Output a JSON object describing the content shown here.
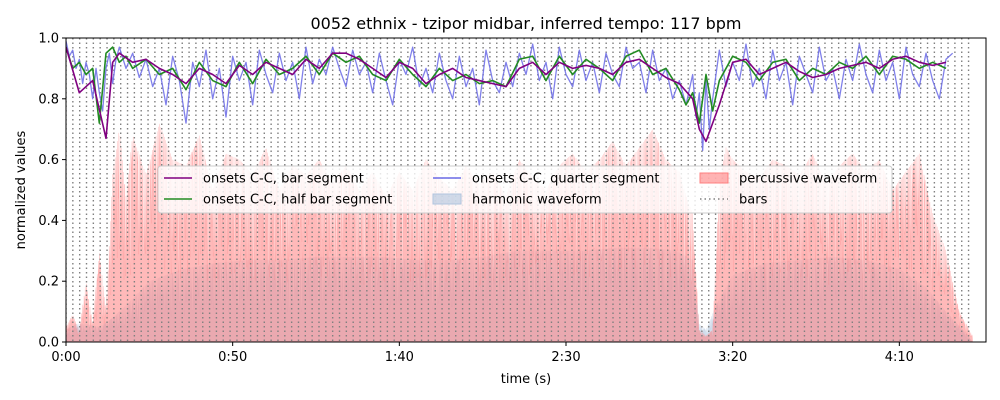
{
  "chart_data": {
    "type": "line",
    "title": "0052 ethnix - tzipor midbar, inferred tempo: 117 bpm",
    "xlabel": "time (s)",
    "ylabel": "normalized values",
    "xlim": [
      0,
      276
    ],
    "ylim": [
      0.0,
      1.0
    ],
    "x_ticks": [
      {
        "value": 0,
        "label": "0:00"
      },
      {
        "value": 50,
        "label": "0:50"
      },
      {
        "value": 100,
        "label": "1:40"
      },
      {
        "value": 150,
        "label": "2:30"
      },
      {
        "value": 200,
        "label": "3:20"
      },
      {
        "value": 250,
        "label": "4:10"
      }
    ],
    "y_ticks": [
      {
        "value": 0.0,
        "label": "0.0"
      },
      {
        "value": 0.2,
        "label": "0.2"
      },
      {
        "value": 0.4,
        "label": "0.4"
      },
      {
        "value": 0.6,
        "label": "0.6"
      },
      {
        "value": 0.8,
        "label": "0.8"
      },
      {
        "value": 1.0,
        "label": "1.0"
      }
    ],
    "grid": false,
    "legend_position": "center",
    "bars": {
      "name": "bars",
      "color": "#808080",
      "tempo_bpm": 117,
      "beats_per_bar": 4,
      "start": 0,
      "end": 272
    },
    "series": [
      {
        "name": "onsets C-C, bar segment",
        "type": "line",
        "color": "#800080",
        "x": [
          0,
          4,
          8,
          12,
          14,
          16,
          20,
          24,
          28,
          32,
          36,
          40,
          44,
          48,
          52,
          56,
          60,
          64,
          68,
          72,
          76,
          80,
          84,
          88,
          92,
          96,
          100,
          104,
          108,
          112,
          116,
          120,
          124,
          128,
          132,
          136,
          140,
          144,
          148,
          152,
          156,
          160,
          164,
          168,
          172,
          176,
          180,
          184,
          188,
          190,
          192,
          196,
          200,
          204,
          208,
          212,
          216,
          220,
          224,
          228,
          232,
          236,
          240,
          244,
          248,
          252,
          256,
          260,
          264
        ],
        "values": [
          0.97,
          0.82,
          0.86,
          0.67,
          0.92,
          0.95,
          0.92,
          0.93,
          0.9,
          0.88,
          0.85,
          0.9,
          0.88,
          0.85,
          0.91,
          0.88,
          0.92,
          0.9,
          0.88,
          0.93,
          0.9,
          0.95,
          0.95,
          0.93,
          0.9,
          0.87,
          0.92,
          0.9,
          0.85,
          0.88,
          0.9,
          0.87,
          0.86,
          0.85,
          0.84,
          0.9,
          0.92,
          0.88,
          0.92,
          0.9,
          0.91,
          0.9,
          0.88,
          0.92,
          0.93,
          0.9,
          0.87,
          0.85,
          0.8,
          0.7,
          0.66,
          0.78,
          0.92,
          0.93,
          0.88,
          0.9,
          0.92,
          0.89,
          0.87,
          0.88,
          0.9,
          0.91,
          0.92,
          0.9,
          0.93,
          0.94,
          0.92,
          0.91,
          0.92
        ]
      },
      {
        "name": "onsets C-C, half bar segment",
        "type": "line",
        "color": "#228B22",
        "x": [
          0,
          2,
          4,
          6,
          8,
          10,
          12,
          14,
          16,
          18,
          20,
          24,
          28,
          32,
          36,
          40,
          44,
          48,
          52,
          56,
          60,
          64,
          68,
          72,
          76,
          80,
          84,
          88,
          92,
          96,
          100,
          104,
          108,
          112,
          116,
          120,
          124,
          128,
          132,
          136,
          140,
          144,
          148,
          152,
          156,
          160,
          164,
          168,
          172,
          176,
          180,
          184,
          186,
          188,
          190,
          192,
          194,
          196,
          200,
          204,
          208,
          212,
          216,
          220,
          224,
          228,
          232,
          236,
          240,
          244,
          248,
          252,
          256,
          260,
          264
        ],
        "values": [
          0.97,
          0.9,
          0.92,
          0.88,
          0.9,
          0.72,
          0.95,
          0.97,
          0.92,
          0.94,
          0.9,
          0.93,
          0.88,
          0.9,
          0.83,
          0.92,
          0.86,
          0.84,
          0.92,
          0.85,
          0.93,
          0.88,
          0.9,
          0.94,
          0.88,
          0.95,
          0.92,
          0.94,
          0.88,
          0.86,
          0.93,
          0.88,
          0.84,
          0.9,
          0.86,
          0.88,
          0.85,
          0.86,
          0.84,
          0.93,
          0.94,
          0.86,
          0.94,
          0.88,
          0.93,
          0.9,
          0.86,
          0.94,
          0.96,
          0.88,
          0.9,
          0.83,
          0.78,
          0.82,
          0.72,
          0.88,
          0.76,
          0.86,
          0.94,
          0.92,
          0.86,
          0.92,
          0.93,
          0.86,
          0.9,
          0.88,
          0.92,
          0.9,
          0.94,
          0.88,
          0.94,
          0.93,
          0.9,
          0.92,
          0.9
        ]
      },
      {
        "name": "onsets C-C, quarter segment",
        "type": "line",
        "color": "#6A6AE6",
        "x": [
          0,
          1,
          2,
          3,
          4,
          5,
          6,
          7,
          8,
          9,
          10,
          11,
          12,
          13,
          14,
          15,
          16,
          18,
          20,
          22,
          24,
          26,
          28,
          30,
          32,
          34,
          36,
          38,
          40,
          42,
          44,
          46,
          48,
          50,
          52,
          54,
          56,
          58,
          60,
          62,
          64,
          66,
          68,
          70,
          72,
          74,
          76,
          78,
          80,
          82,
          84,
          86,
          88,
          90,
          92,
          94,
          96,
          98,
          100,
          102,
          104,
          106,
          108,
          110,
          112,
          114,
          116,
          118,
          120,
          122,
          124,
          126,
          128,
          130,
          132,
          134,
          136,
          138,
          140,
          142,
          144,
          146,
          148,
          150,
          152,
          154,
          156,
          158,
          160,
          162,
          164,
          166,
          168,
          170,
          172,
          174,
          176,
          178,
          180,
          182,
          184,
          186,
          188,
          189,
          190,
          191,
          192,
          193,
          194,
          196,
          198,
          200,
          202,
          204,
          206,
          208,
          210,
          212,
          214,
          216,
          218,
          220,
          222,
          224,
          226,
          228,
          230,
          232,
          234,
          236,
          238,
          240,
          242,
          244,
          246,
          248,
          250,
          252,
          254,
          256,
          258,
          260,
          262,
          264,
          266
        ],
        "values": [
          0.99,
          0.94,
          0.96,
          0.9,
          0.93,
          0.85,
          0.92,
          0.88,
          0.8,
          0.9,
          0.82,
          0.76,
          0.9,
          0.95,
          0.85,
          0.93,
          0.97,
          0.9,
          0.95,
          0.87,
          0.93,
          0.84,
          0.9,
          0.78,
          0.94,
          0.86,
          0.72,
          0.92,
          0.84,
          0.96,
          0.8,
          0.9,
          0.74,
          0.94,
          0.86,
          0.92,
          0.78,
          0.96,
          0.88,
          0.82,
          0.95,
          0.86,
          0.92,
          0.8,
          0.97,
          0.85,
          0.93,
          0.88,
          0.97,
          0.9,
          0.84,
          0.96,
          0.88,
          0.92,
          0.82,
          0.95,
          0.86,
          0.78,
          0.93,
          0.88,
          0.97,
          0.84,
          0.9,
          0.82,
          0.95,
          0.86,
          0.8,
          0.94,
          0.84,
          0.9,
          0.78,
          0.96,
          0.86,
          0.82,
          0.92,
          0.84,
          0.95,
          0.88,
          0.98,
          0.86,
          0.92,
          0.8,
          0.97,
          0.88,
          0.84,
          0.96,
          0.86,
          0.92,
          0.82,
          0.95,
          0.88,
          0.84,
          0.97,
          0.9,
          0.92,
          0.82,
          0.96,
          0.86,
          0.9,
          0.8,
          0.86,
          0.78,
          0.88,
          0.74,
          0.82,
          0.63,
          0.86,
          0.7,
          0.8,
          0.96,
          0.84,
          0.92,
          0.86,
          0.98,
          0.84,
          0.9,
          0.8,
          0.96,
          0.86,
          0.92,
          0.78,
          0.94,
          0.88,
          0.82,
          0.97,
          0.86,
          0.9,
          0.8,
          0.93,
          0.86,
          0.98,
          0.88,
          0.82,
          0.96,
          0.86,
          0.92,
          0.8,
          0.97,
          0.88,
          0.84,
          0.95,
          0.86,
          0.8,
          0.93,
          0.95
        ]
      },
      {
        "name": "harmonic waveform",
        "type": "area",
        "color": "#B0C4DE",
        "x": [
          0,
          3,
          6,
          10,
          14,
          18,
          25,
          35,
          45,
          55,
          65,
          75,
          85,
          95,
          105,
          115,
          125,
          135,
          145,
          155,
          165,
          175,
          183,
          188,
          190,
          192,
          195,
          200,
          210,
          220,
          230,
          240,
          250,
          258,
          264,
          270,
          272
        ],
        "values": [
          0.04,
          0.06,
          0.06,
          0.05,
          0.08,
          0.12,
          0.2,
          0.24,
          0.26,
          0.27,
          0.27,
          0.28,
          0.28,
          0.28,
          0.27,
          0.27,
          0.28,
          0.3,
          0.3,
          0.3,
          0.31,
          0.31,
          0.3,
          0.27,
          0.06,
          0.04,
          0.12,
          0.22,
          0.26,
          0.27,
          0.28,
          0.27,
          0.24,
          0.18,
          0.1,
          0.03,
          0.0
        ]
      },
      {
        "name": "percussive waveform",
        "type": "area",
        "color": "#FF8080",
        "x": [
          0,
          2,
          4,
          6,
          8,
          10,
          12,
          14,
          16,
          18,
          20,
          24,
          28,
          32,
          36,
          40,
          44,
          48,
          52,
          56,
          60,
          64,
          68,
          72,
          76,
          80,
          84,
          88,
          92,
          96,
          100,
          104,
          108,
          112,
          116,
          120,
          124,
          128,
          132,
          136,
          140,
          144,
          148,
          152,
          156,
          160,
          164,
          168,
          172,
          176,
          180,
          184,
          186,
          188,
          190,
          192,
          194,
          196,
          198,
          200,
          204,
          208,
          212,
          216,
          220,
          224,
          228,
          232,
          236,
          240,
          244,
          248,
          252,
          256,
          260,
          264,
          268,
          272
        ],
        "values": [
          0.05,
          0.09,
          0.04,
          0.2,
          0.06,
          0.3,
          0.1,
          0.55,
          0.7,
          0.48,
          0.68,
          0.55,
          0.72,
          0.6,
          0.58,
          0.68,
          0.5,
          0.62,
          0.6,
          0.55,
          0.64,
          0.5,
          0.58,
          0.55,
          0.6,
          0.52,
          0.58,
          0.5,
          0.56,
          0.48,
          0.56,
          0.5,
          0.6,
          0.54,
          0.5,
          0.58,
          0.52,
          0.56,
          0.48,
          0.6,
          0.54,
          0.5,
          0.58,
          0.62,
          0.56,
          0.6,
          0.66,
          0.58,
          0.64,
          0.7,
          0.6,
          0.56,
          0.48,
          0.42,
          0.04,
          0.02,
          0.04,
          0.52,
          0.64,
          0.6,
          0.56,
          0.54,
          0.6,
          0.58,
          0.55,
          0.62,
          0.52,
          0.58,
          0.62,
          0.56,
          0.6,
          0.5,
          0.56,
          0.62,
          0.42,
          0.3,
          0.1,
          0.02
        ]
      }
    ],
    "legend": [
      {
        "label": "onsets C-C, bar segment",
        "kind": "line",
        "color": "#800080"
      },
      {
        "label": "onsets C-C, half bar segment",
        "kind": "line",
        "color": "#228B22"
      },
      {
        "label": "onsets C-C, quarter segment",
        "kind": "line",
        "color": "#6A6AE6"
      },
      {
        "label": "harmonic waveform",
        "kind": "patch",
        "color": "#B0C4DE"
      },
      {
        "label": "percussive waveform",
        "kind": "patch",
        "color": "#FF8080"
      },
      {
        "label": "bars",
        "kind": "dotted",
        "color": "#808080"
      }
    ]
  }
}
